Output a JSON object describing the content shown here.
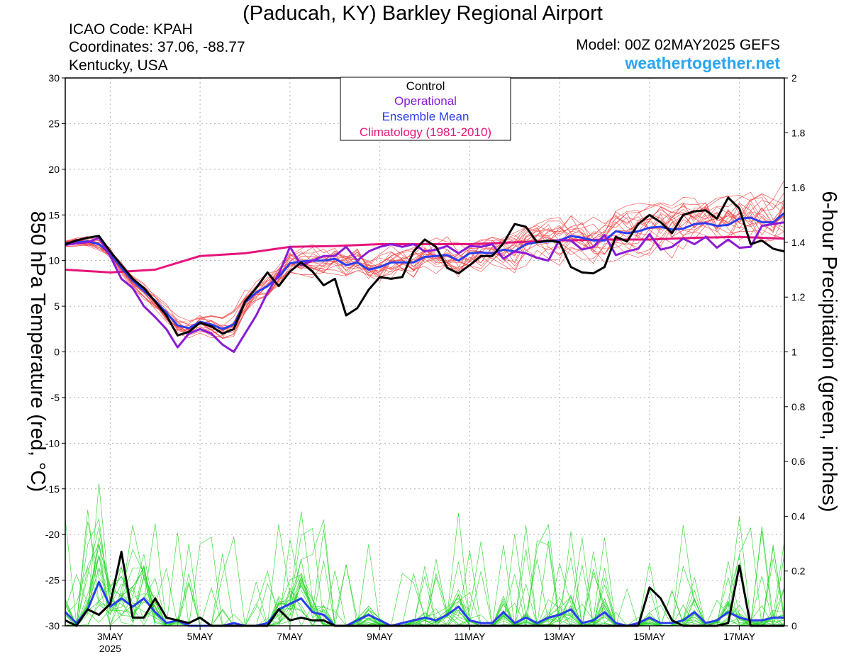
{
  "header": {
    "title": "(Paducah, KY) Barkley Regional Airport",
    "icao": "ICAO Code: KPAH",
    "coords": "Coordinates: 37.06, -88.77",
    "region": "Kentucky, USA",
    "model": "Model: 00Z 02MAY2025 GEFS",
    "site": "weathertogether.net"
  },
  "legend": {
    "items": [
      {
        "label": "Control",
        "color": "#000000"
      },
      {
        "label": "Operational",
        "color": "#8a1bd6"
      },
      {
        "label": "Ensemble Mean",
        "color": "#2a3df0"
      },
      {
        "label": "Climatology (1981-2010)",
        "color": "#e6147a"
      }
    ]
  },
  "colors": {
    "members_temp": "#f04040",
    "members_precip": "#22d422",
    "control": "#000000",
    "operational": "#8a1bd6",
    "mean": "#2a3df0",
    "climatology": "#e6147a"
  },
  "chart_data": {
    "type": "line",
    "title": "(Paducah, KY) Barkley Regional Airport",
    "ylabel": "850 hPa Temperature (red, °C)",
    "y2label": "6-hour Precipitation (green, inches)",
    "ylim": [
      -30,
      30
    ],
    "y2lim": [
      0,
      2
    ],
    "yticks": [
      "30",
      "25",
      "20",
      "15",
      "10",
      "5",
      "0",
      "-5",
      "-10",
      "-15",
      "-20",
      "-25",
      "-30"
    ],
    "y2ticks": [
      "2",
      "1.8",
      "1.6",
      "1.4",
      "1.2",
      "1",
      "0.8",
      "0.6",
      "0.4",
      "0.2",
      "0"
    ],
    "xlim": [
      0,
      64
    ],
    "xticks": [
      {
        "label": "3MAY",
        "sub": "2025",
        "x": 4
      },
      {
        "label": "5MAY",
        "sub": "",
        "x": 12
      },
      {
        "label": "7MAY",
        "sub": "",
        "x": 20
      },
      {
        "label": "9MAY",
        "sub": "",
        "x": 28
      },
      {
        "label": "11MAY",
        "sub": "",
        "x": 36
      },
      {
        "label": "13MAY",
        "sub": "",
        "x": 44
      },
      {
        "label": "15MAY",
        "sub": "",
        "x": 52
      },
      {
        "label": "17MAY",
        "sub": "",
        "x": 60
      }
    ],
    "grid": true,
    "legend_position": "top-center",
    "series": [
      {
        "name": "Climatology (1981-2010)",
        "axis": "temp",
        "x": [
          0,
          4,
          8,
          12,
          16,
          20,
          24,
          28,
          32,
          36,
          40,
          44,
          48,
          52,
          56,
          60,
          64
        ],
        "values": [
          9.0,
          8.7,
          9.0,
          10.5,
          10.8,
          11.5,
          11.6,
          11.8,
          11.8,
          11.8,
          12.0,
          12.2,
          12.3,
          12.3,
          12.5,
          12.6,
          12.4
        ]
      },
      {
        "name": "Control",
        "axis": "temp",
        "x": [
          0,
          1,
          2,
          3,
          4,
          5,
          6,
          7,
          8,
          9,
          10,
          11,
          12,
          13,
          14,
          15,
          16,
          17,
          18,
          19,
          20,
          21,
          22,
          23,
          24,
          25,
          26,
          27,
          28,
          29,
          30,
          31,
          32,
          33,
          34,
          35,
          36,
          37,
          38,
          39,
          40,
          41,
          42,
          43,
          44,
          45,
          46,
          47,
          48,
          49,
          50,
          51,
          52,
          53,
          54,
          55,
          56,
          57,
          58,
          59,
          60,
          61,
          62,
          63,
          64
        ],
        "values": [
          11.8,
          12.2,
          12.5,
          12.7,
          11.0,
          9.5,
          8.0,
          7.0,
          5.5,
          4.0,
          1.8,
          2.2,
          3.2,
          2.8,
          2.0,
          2.5,
          5.5,
          7.0,
          8.7,
          7.2,
          8.8,
          9.8,
          8.8,
          7.3,
          8.0,
          4.0,
          4.8,
          6.8,
          8.2,
          8.0,
          8.2,
          11.0,
          12.3,
          11.5,
          9.2,
          8.6,
          9.5,
          10.5,
          10.5,
          11.9,
          14.0,
          13.7,
          12.0,
          12.2,
          12.0,
          9.3,
          8.7,
          8.6,
          9.3,
          12.6,
          12.1,
          14.0,
          15.0,
          14.2,
          13.0,
          15.0,
          15.4,
          15.5,
          14.6,
          16.9,
          15.7,
          11.8,
          12.2,
          11.3,
          11.0
        ]
      },
      {
        "name": "Operational",
        "axis": "temp",
        "x": [
          0,
          1,
          2,
          3,
          4,
          5,
          6,
          7,
          8,
          9,
          10,
          11,
          12,
          13,
          14,
          15,
          16,
          17,
          18,
          19,
          20,
          21,
          22,
          23,
          24,
          25,
          26,
          27,
          28,
          29,
          30,
          31,
          32,
          33,
          34,
          35,
          36,
          37,
          38,
          39,
          40,
          41,
          42,
          43,
          44,
          45,
          46,
          47,
          48,
          49,
          50,
          51,
          52,
          53,
          54,
          55,
          56,
          57,
          58,
          59,
          60,
          61,
          62,
          63,
          64
        ],
        "values": [
          11.7,
          11.9,
          12.0,
          12.5,
          10.5,
          8.0,
          7.0,
          5.0,
          3.8,
          2.5,
          0.5,
          2.0,
          2.5,
          2.0,
          0.8,
          0.0,
          2.0,
          4.0,
          6.5,
          8.5,
          11.5,
          9.5,
          10.0,
          10.5,
          10.5,
          11.5,
          10.0,
          11.0,
          11.5,
          11.8,
          11.5,
          11.8,
          11.0,
          11.2,
          11.6,
          10.8,
          11.6,
          11.5,
          11.8,
          10.2,
          11.0,
          10.8,
          10.3,
          10.0,
          12.3,
          12.2,
          11.2,
          11.5,
          12.8,
          10.6,
          11.0,
          11.3,
          12.9,
          11.2,
          11.5,
          12.4,
          11.8,
          12.6,
          11.4,
          12.3,
          11.4,
          11.5,
          13.8,
          14.0,
          14.2
        ]
      },
      {
        "name": "Ensemble Mean",
        "axis": "temp",
        "x": [
          0,
          1,
          2,
          3,
          4,
          5,
          6,
          7,
          8,
          9,
          10,
          11,
          12,
          13,
          14,
          15,
          16,
          17,
          18,
          19,
          20,
          21,
          22,
          23,
          24,
          25,
          26,
          27,
          28,
          29,
          30,
          31,
          32,
          33,
          34,
          35,
          36,
          37,
          38,
          39,
          40,
          41,
          42,
          43,
          44,
          45,
          46,
          47,
          48,
          49,
          50,
          51,
          52,
          53,
          54,
          55,
          56,
          57,
          58,
          59,
          60,
          61,
          62,
          63,
          64
        ],
        "values": [
          11.9,
          12.0,
          12.1,
          11.8,
          10.8,
          9.2,
          7.8,
          6.7,
          5.6,
          4.3,
          2.9,
          2.6,
          3.3,
          3.0,
          2.5,
          3.0,
          5.4,
          6.5,
          7.2,
          8.2,
          9.7,
          9.9,
          10.0,
          10.0,
          10.2,
          9.5,
          9.8,
          9.0,
          9.3,
          9.8,
          9.8,
          9.8,
          10.4,
          10.5,
          10.6,
          10.0,
          10.8,
          10.9,
          10.8,
          11.2,
          11.0,
          11.8,
          12.0,
          12.1,
          12.2,
          12.7,
          12.5,
          12.2,
          12.2,
          13.2,
          13.0,
          13.2,
          13.6,
          13.7,
          13.4,
          13.5,
          14.0,
          14.1,
          13.8,
          13.9,
          14.6,
          14.7,
          14.2,
          14.2,
          15.2
        ]
      },
      {
        "name": "Control",
        "axis": "precip",
        "x": [
          0,
          1,
          2,
          3,
          4,
          5,
          6,
          7,
          8,
          9,
          10,
          11,
          12,
          13,
          14,
          15,
          16,
          17,
          18,
          19,
          20,
          21,
          22,
          23,
          24,
          25,
          26,
          27,
          28,
          29,
          30,
          31,
          32,
          33,
          34,
          35,
          36,
          37,
          38,
          39,
          40,
          41,
          42,
          43,
          44,
          45,
          46,
          47,
          48,
          49,
          50,
          51,
          52,
          53,
          54,
          55,
          56,
          57,
          58,
          59,
          60,
          61,
          62,
          63,
          64
        ],
        "values": [
          0.02,
          0,
          0.06,
          0.04,
          0.08,
          0.27,
          0.03,
          0.03,
          0.1,
          0.03,
          0.02,
          0.01,
          0.03,
          0,
          0,
          0,
          0,
          0,
          0,
          0.06,
          0.02,
          0.03,
          0.02,
          0.02,
          0,
          0,
          0,
          0,
          0,
          0,
          0,
          0,
          0,
          0,
          0,
          0,
          0,
          0,
          0,
          0,
          0,
          0,
          0,
          0,
          0,
          0,
          0,
          0,
          0,
          0,
          0,
          0,
          0.14,
          0.1,
          0.02,
          0,
          0,
          0,
          0,
          0.01,
          0.22,
          0,
          0,
          0,
          0
        ]
      },
      {
        "name": "Ensemble Mean",
        "axis": "precip",
        "x": [
          0,
          1,
          2,
          3,
          4,
          5,
          6,
          7,
          8,
          9,
          10,
          11,
          12,
          13,
          14,
          15,
          16,
          17,
          18,
          19,
          20,
          21,
          22,
          23,
          24,
          25,
          26,
          27,
          28,
          29,
          30,
          31,
          32,
          33,
          34,
          35,
          36,
          37,
          38,
          39,
          40,
          41,
          42,
          43,
          44,
          45,
          46,
          47,
          48,
          49,
          50,
          51,
          52,
          53,
          54,
          55,
          56,
          57,
          58,
          59,
          60,
          61,
          62,
          63,
          64
        ],
        "values": [
          0.05,
          0.01,
          0.06,
          0.16,
          0.07,
          0.1,
          0.07,
          0.1,
          0.05,
          0.01,
          0.02,
          0,
          0,
          0,
          0,
          0.01,
          0,
          0,
          0.01,
          0.06,
          0.08,
          0.1,
          0.05,
          0.04,
          0,
          0,
          0.02,
          0.04,
          0.02,
          0,
          0.01,
          0.02,
          0.03,
          0.02,
          0.04,
          0.07,
          0.02,
          0.01,
          0.01,
          0.05,
          0.01,
          0.03,
          0.01,
          0.03,
          0.04,
          0.06,
          0.01,
          0.02,
          0.05,
          0.01,
          0,
          0.01,
          0.03,
          0.01,
          0.01,
          0.02,
          0.05,
          0.01,
          0.02,
          0.05,
          0.03,
          0.02,
          0.02,
          0.03,
          0.03
        ]
      }
    ]
  }
}
